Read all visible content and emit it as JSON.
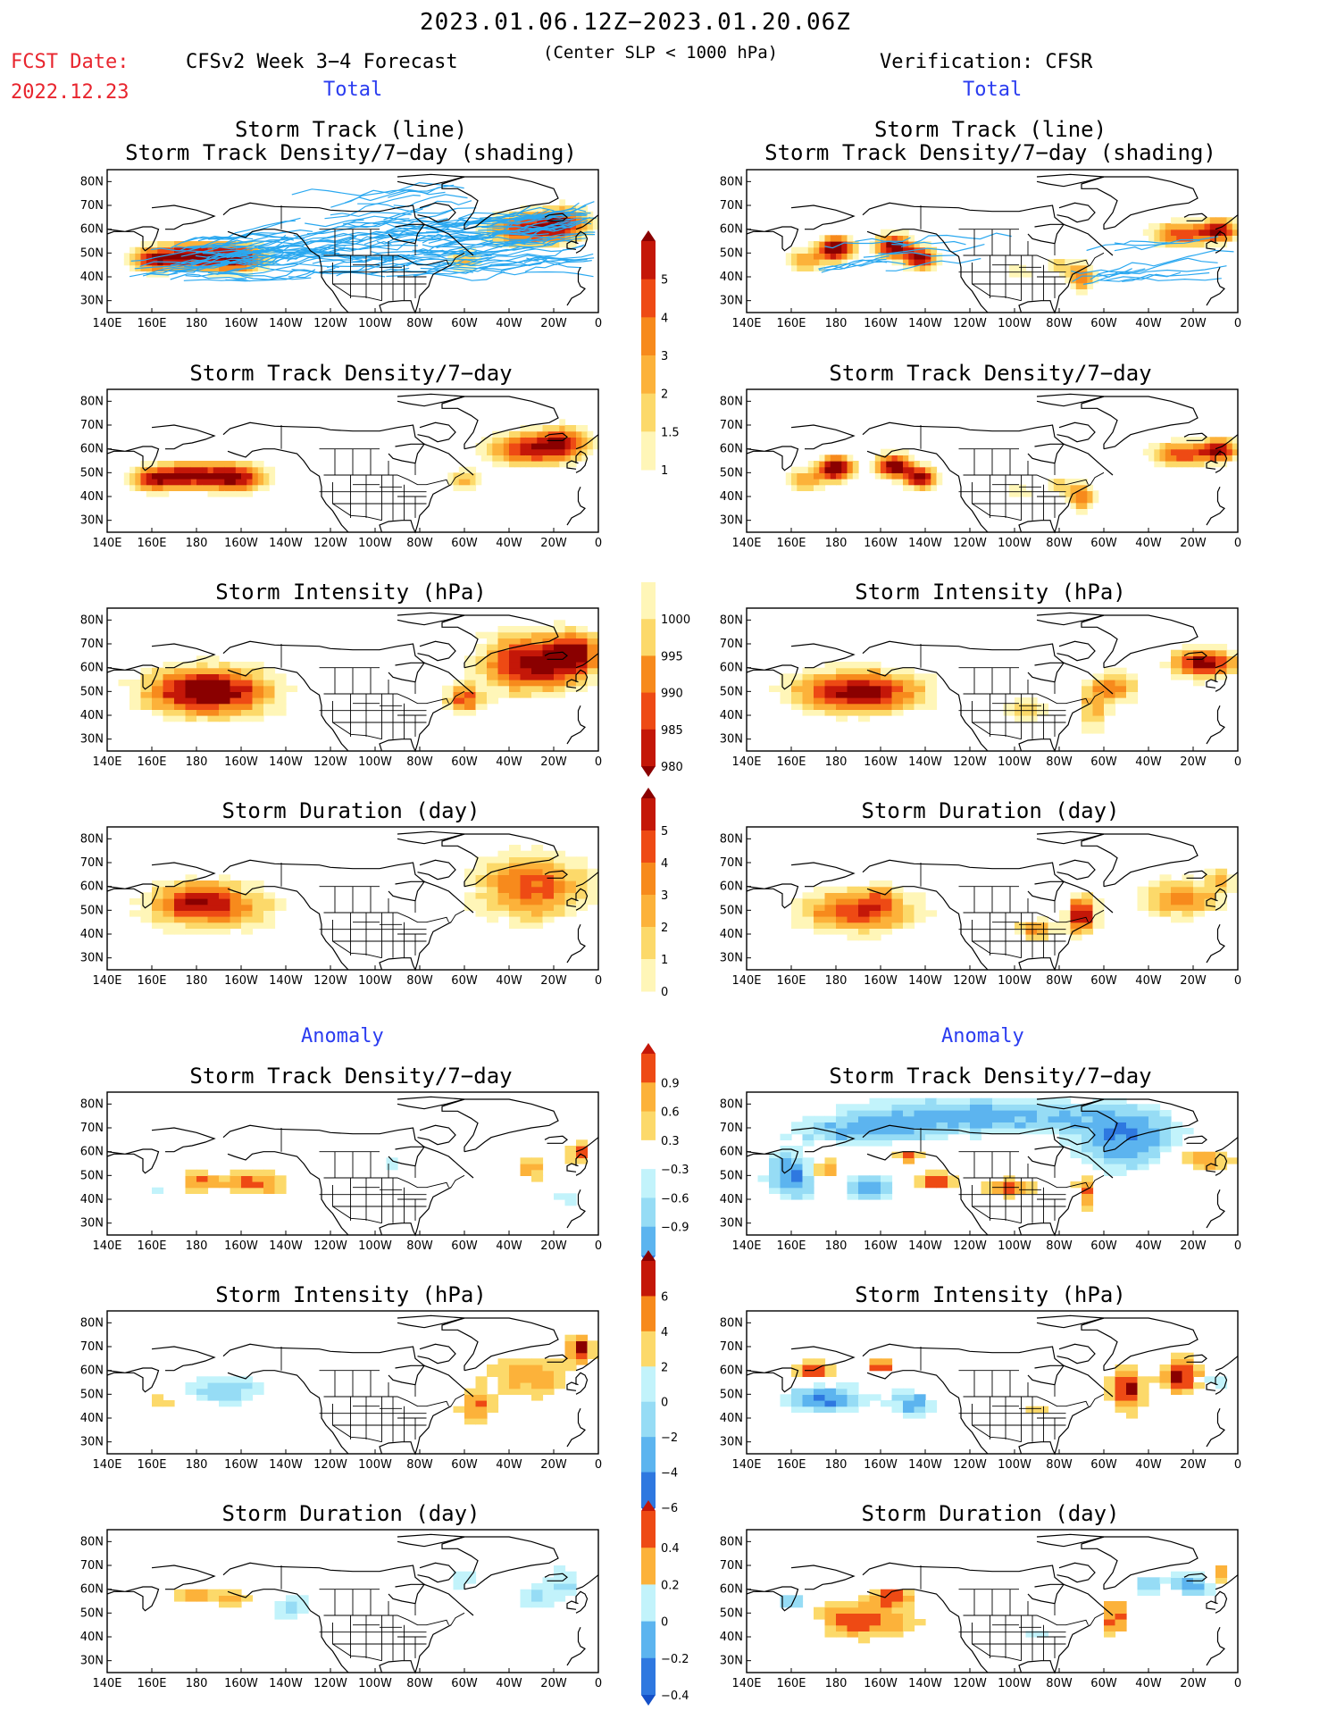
{
  "header": {
    "date_range": "2023.01.06.12Z−2023.01.20.06Z",
    "fcst_label": "FCST Date:",
    "fcst_date": "2022.12.23",
    "model": "CFSv2 Week 3−4 Forecast",
    "criterion": "(Center SLP < 1000 hPa)",
    "verification": "Verification: CFSR"
  },
  "sections": {
    "total_left": "Total",
    "total_right": "Total",
    "anomaly_left": "Anomaly",
    "anomaly_right": "Anomaly"
  },
  "panel_titles": {
    "track_line_1": "Storm Track (line)",
    "track_line_2": "Storm Track Density/7−day (shading)",
    "density": "Storm Track Density/7−day",
    "intensity": "Storm Intensity (hPa)",
    "duration": "Storm Duration (day)"
  },
  "axes": {
    "lon_ticks": [
      "140E",
      "160E",
      "180",
      "160W",
      "140W",
      "120W",
      "100W",
      "80W",
      "60W",
      "40W",
      "20W",
      "0"
    ],
    "lat_ticks": [
      "80N",
      "70N",
      "60N",
      "50N",
      "40N",
      "30N"
    ]
  },
  "colorbars": {
    "density_total": [
      "1",
      "1.5",
      "2",
      "3",
      "4",
      "5"
    ],
    "intensity_total": [
      "1000",
      "995",
      "990",
      "985",
      "980"
    ],
    "duration_total": [
      "0",
      "1",
      "2",
      "3",
      "4",
      "5"
    ],
    "density_anom": [
      "0.9",
      "0.6",
      "0.3",
      "−0.3",
      "−0.6",
      "−0.9"
    ],
    "intensity_anom": [
      "6",
      "4",
      "2",
      "0",
      "−2",
      "−4",
      "−6"
    ],
    "duration_anom": [
      "0.4",
      "0.2",
      "0",
      "−0.2",
      "−0.4"
    ]
  },
  "colors": {
    "warm": [
      "#fff6b8",
      "#fcd96a",
      "#fcb23a",
      "#f78a1c",
      "#ee4a14",
      "#c41708",
      "#8a0000"
    ],
    "cool": [
      "#c2f3fb",
      "#96dcf5",
      "#5cb4ef",
      "#2e78e0",
      "#1450c8"
    ],
    "track_line": "#2aa8f0",
    "header_red": "#e8252e",
    "header_blue": "#2a3cf0"
  }
}
